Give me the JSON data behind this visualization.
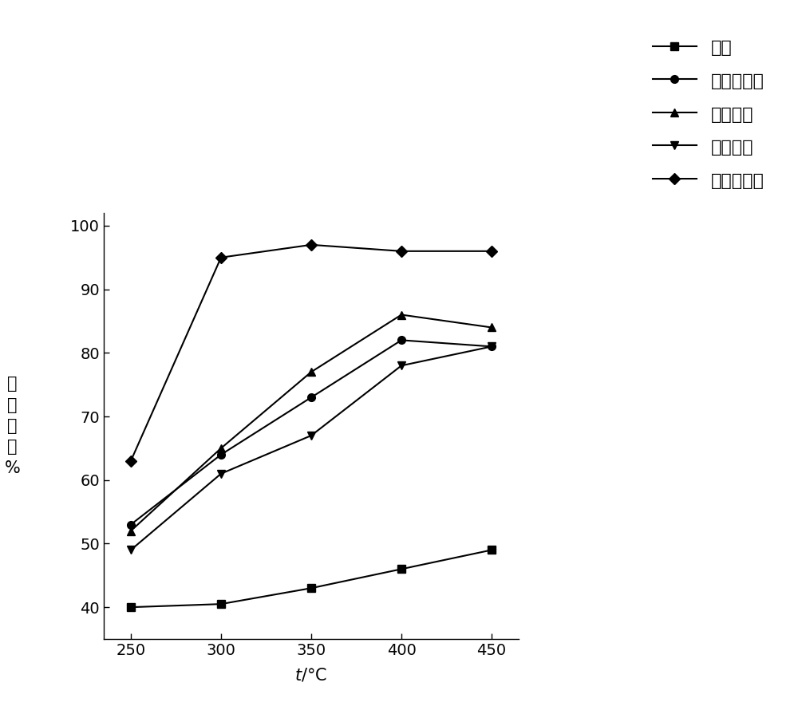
{
  "x": [
    250,
    300,
    350,
    400,
    450
  ],
  "series": [
    {
      "label": "失活",
      "marker": "s",
      "color": "#000000",
      "markersize": 7,
      "linewidth": 1.5,
      "y": [
        40,
        40.5,
        43,
        46,
        49
      ]
    },
    {
      "label": "超声波再生",
      "marker": "o",
      "color": "#000000",
      "markersize": 7,
      "linewidth": 1.5,
      "y": [
        53,
        64,
        73,
        82,
        81
      ]
    },
    {
      "label": "鼓泡再生",
      "marker": "^",
      "color": "#000000",
      "markersize": 7,
      "linewidth": 1.5,
      "y": [
        52,
        65,
        77,
        86,
        84
      ]
    },
    {
      "label": "淋滤再生",
      "marker": "v",
      "color": "#000000",
      "markersize": 7,
      "linewidth": 1.5,
      "y": [
        49,
        61,
        67,
        78,
        81
      ]
    },
    {
      "label": "本发明再生",
      "marker": "D",
      "color": "#000000",
      "markersize": 7,
      "linewidth": 1.5,
      "y": [
        63,
        95,
        97,
        96,
        96
      ]
    }
  ],
  "xlabel": "t/°C",
  "ylim": [
    35,
    102
  ],
  "yticks": [
    40,
    50,
    60,
    70,
    80,
    90,
    100
  ],
  "xticks": [
    250,
    300,
    350,
    400,
    450
  ],
  "background_color": "#ffffff",
  "label_fontsize": 15,
  "tick_fontsize": 14,
  "legend_fontsize": 16
}
